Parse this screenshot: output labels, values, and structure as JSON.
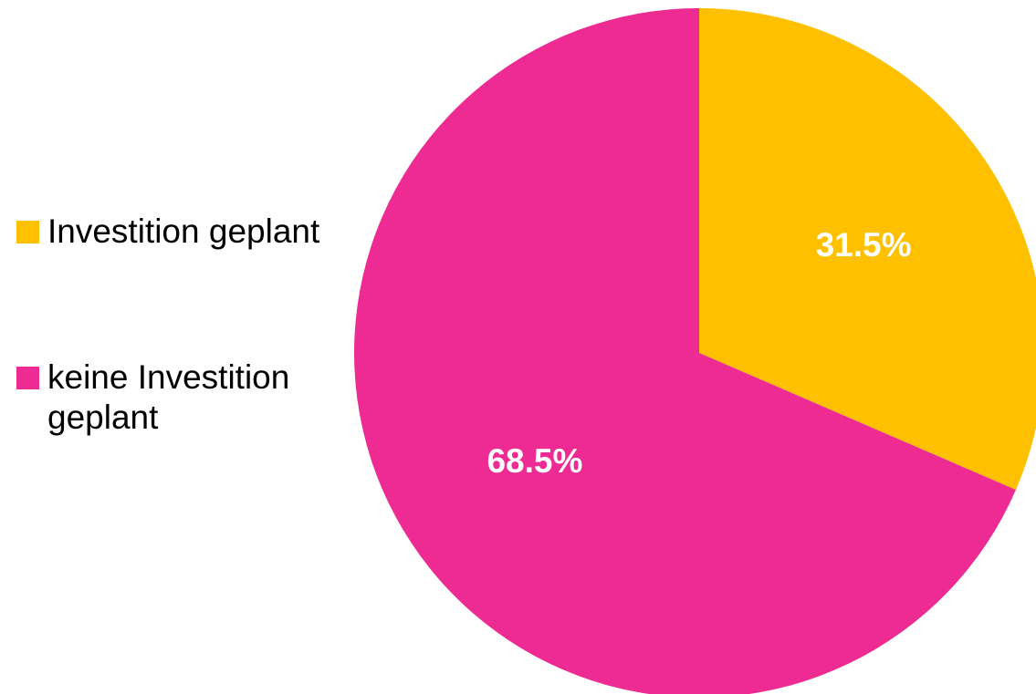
{
  "chart_data": {
    "type": "pie",
    "title": "",
    "legend_position": "left",
    "start_angle": "12 o'clock, clockwise",
    "slices": [
      {
        "name": "Investition geplant",
        "value": 31.5,
        "label": "31.5%",
        "color": "#FFC000"
      },
      {
        "name": "keine Investition geplant",
        "value": 68.5,
        "label": "68.5%",
        "color": "#EE2A93"
      }
    ]
  }
}
